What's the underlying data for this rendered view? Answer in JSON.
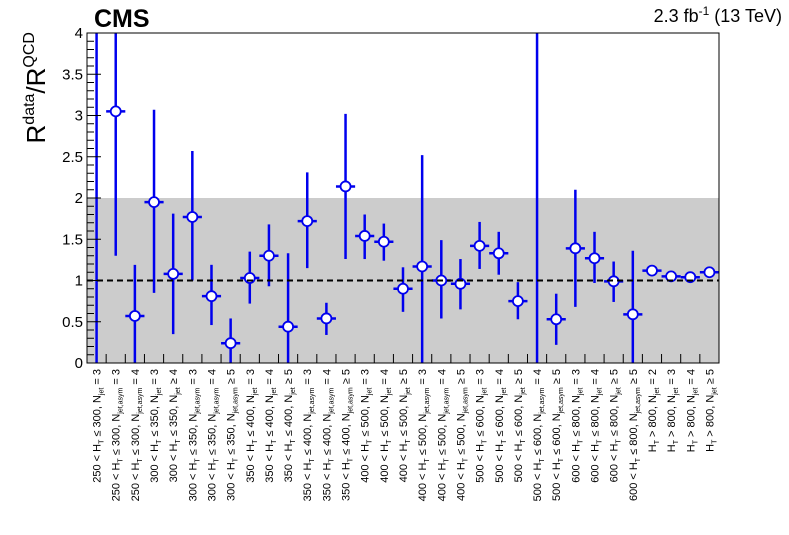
{
  "header": {
    "experiment": "CMS",
    "lumi_prefix": "2.3 fb",
    "lumi_sup": "-1",
    "lumi_suffix": " (13 TeV)"
  },
  "colors": {
    "band": "#cccccc",
    "points": "#0000ee",
    "reference": "#000000"
  },
  "chart_data": {
    "type": "scatter",
    "title": "",
    "ylabel": "R^data/R^QCD",
    "ylabel_parts": {
      "main1": "R",
      "sup1": "data",
      "slash": "/R",
      "sup2": "QCD"
    },
    "xlabel": "",
    "ylim": [
      0,
      4
    ],
    "yticks": [
      "0",
      "0.5",
      "1",
      "1.5",
      "2",
      "2.5",
      "3",
      "3.5",
      "4"
    ],
    "yticks_values": [
      0,
      0.5,
      1,
      1.5,
      2,
      2.5,
      3,
      3.5,
      4
    ],
    "band": [
      0,
      2
    ],
    "reference_line": 1,
    "grid": false,
    "categories": [
      {
        "pre": "250 < H",
        "sub1": "T",
        "mid": " ≤ 300, N",
        "sub2": "jet",
        "post": " = 3"
      },
      {
        "pre": "250 < H",
        "sub1": "T",
        "mid": " ≤ 300, N",
        "sub2": "jet,asym",
        "post": " = 3"
      },
      {
        "pre": "250 < H",
        "sub1": "T",
        "mid": " ≤ 300, N",
        "sub2": "jet,asym",
        "post": " = 4"
      },
      {
        "pre": "300 < H",
        "sub1": "T",
        "mid": " ≤ 350, N",
        "sub2": "jet",
        "post": " = 3"
      },
      {
        "pre": "300 < H",
        "sub1": "T",
        "mid": " ≤ 350, N",
        "sub2": "jet",
        "post": " ≥ 4"
      },
      {
        "pre": "300 < H",
        "sub1": "T",
        "mid": " ≤ 350, N",
        "sub2": "jet,asym",
        "post": " = 3"
      },
      {
        "pre": "300 < H",
        "sub1": "T",
        "mid": " ≤ 350, N",
        "sub2": "jet,asym",
        "post": " = 4"
      },
      {
        "pre": "300 < H",
        "sub1": "T",
        "mid": " ≤ 350, N",
        "sub2": "jet,asym",
        "post": " ≥ 5"
      },
      {
        "pre": "350 < H",
        "sub1": "T",
        "mid": " ≤ 400, N",
        "sub2": "jet",
        "post": " = 3"
      },
      {
        "pre": "350 < H",
        "sub1": "T",
        "mid": " ≤ 400, N",
        "sub2": "jet",
        "post": " = 4"
      },
      {
        "pre": "350 < H",
        "sub1": "T",
        "mid": " ≤ 400, N",
        "sub2": "jet",
        "post": " ≥ 5"
      },
      {
        "pre": "350 < H",
        "sub1": "T",
        "mid": " ≤ 400, N",
        "sub2": "jet,asym",
        "post": " = 3"
      },
      {
        "pre": "350 < H",
        "sub1": "T",
        "mid": " ≤ 400, N",
        "sub2": "jet,asym",
        "post": " = 4"
      },
      {
        "pre": "350 < H",
        "sub1": "T",
        "mid": " ≤ 400, N",
        "sub2": "jet,asym",
        "post": " ≥ 5"
      },
      {
        "pre": "400 < H",
        "sub1": "T",
        "mid": " ≤ 500, N",
        "sub2": "jet",
        "post": " = 3"
      },
      {
        "pre": "400 < H",
        "sub1": "T",
        "mid": " ≤ 500, N",
        "sub2": "jet",
        "post": " = 4"
      },
      {
        "pre": "400 < H",
        "sub1": "T",
        "mid": " ≤ 500, N",
        "sub2": "jet",
        "post": " ≥ 5"
      },
      {
        "pre": "400 < H",
        "sub1": "T",
        "mid": " ≤ 500, N",
        "sub2": "jet,asym",
        "post": " = 3"
      },
      {
        "pre": "400 < H",
        "sub1": "T",
        "mid": " ≤ 500, N",
        "sub2": "jet,asym",
        "post": " = 4"
      },
      {
        "pre": "400 < H",
        "sub1": "T",
        "mid": " ≤ 500, N",
        "sub2": "jet,asym",
        "post": " ≥ 5"
      },
      {
        "pre": "500 < H",
        "sub1": "T",
        "mid": " ≤ 600, N",
        "sub2": "jet",
        "post": " = 3"
      },
      {
        "pre": "500 < H",
        "sub1": "T",
        "mid": " ≤ 600, N",
        "sub2": "jet",
        "post": " = 4"
      },
      {
        "pre": "500 < H",
        "sub1": "T",
        "mid": " ≤ 600, N",
        "sub2": "jet",
        "post": " ≥ 5"
      },
      {
        "pre": "500 < H",
        "sub1": "T",
        "mid": " ≤ 600, N",
        "sub2": "jet,asym",
        "post": " = 4"
      },
      {
        "pre": "500 < H",
        "sub1": "T",
        "mid": " ≤ 600, N",
        "sub2": "jet,asym",
        "post": " ≥ 5"
      },
      {
        "pre": "600 < H",
        "sub1": "T",
        "mid": " ≤ 800, N",
        "sub2": "jet",
        "post": " = 3"
      },
      {
        "pre": "600 < H",
        "sub1": "T",
        "mid": " ≤ 800, N",
        "sub2": "jet",
        "post": " = 4"
      },
      {
        "pre": "600 < H",
        "sub1": "T",
        "mid": " ≤ 800, N",
        "sub2": "jet",
        "post": " ≥ 5"
      },
      {
        "pre": "600 < H",
        "sub1": "T",
        "mid": " ≤ 800, N",
        "sub2": "jet,asym",
        "post": " ≥ 5"
      },
      {
        "pre": "H",
        "sub1": "T",
        "mid": " > 800, N",
        "sub2": "jet",
        "post": " = 2"
      },
      {
        "pre": "H",
        "sub1": "T",
        "mid": " > 800, N",
        "sub2": "jet",
        "post": " = 3"
      },
      {
        "pre": "H",
        "sub1": "T",
        "mid": " > 800, N",
        "sub2": "jet",
        "post": " = 4"
      },
      {
        "pre": "H",
        "sub1": "T",
        "mid": " > 800, N",
        "sub2": "jet",
        "post": " ≥ 5"
      }
    ],
    "values": [
      0.0,
      3.05,
      0.57,
      1.95,
      1.08,
      1.77,
      0.81,
      0.24,
      1.03,
      1.3,
      0.44,
      1.72,
      0.54,
      2.14,
      1.54,
      1.47,
      0.9,
      1.17,
      1.0,
      0.96,
      1.42,
      1.33,
      0.75,
      0.0,
      0.53,
      1.39,
      1.27,
      0.99,
      0.59,
      1.12,
      1.05,
      1.04,
      1.1
    ],
    "error_low": [
      0.0,
      1.75,
      0.57,
      1.1,
      0.73,
      0.77,
      0.35,
      0.24,
      0.31,
      0.37,
      0.44,
      0.57,
      0.2,
      0.88,
      0.28,
      0.23,
      0.28,
      1.17,
      0.46,
      0.31,
      0.28,
      0.26,
      0.22,
      0.0,
      0.31,
      0.71,
      0.3,
      0.25,
      0.59,
      0.03,
      0.03,
      0.03,
      0.04
    ],
    "error_high": [
      4.0,
      1.4,
      0.62,
      1.12,
      0.73,
      0.8,
      0.38,
      0.3,
      0.32,
      0.38,
      0.89,
      0.59,
      0.19,
      0.88,
      0.26,
      0.22,
      0.26,
      1.35,
      0.49,
      0.3,
      0.29,
      0.26,
      0.23,
      4.0,
      0.31,
      0.71,
      0.32,
      0.24,
      0.77,
      0.03,
      0.03,
      0.03,
      0.04
    ],
    "marker_shown": [
      false,
      true,
      true,
      true,
      true,
      true,
      true,
      true,
      true,
      true,
      true,
      true,
      true,
      true,
      true,
      true,
      true,
      true,
      true,
      true,
      true,
      true,
      true,
      false,
      true,
      true,
      true,
      true,
      true,
      true,
      true,
      true,
      true
    ]
  }
}
